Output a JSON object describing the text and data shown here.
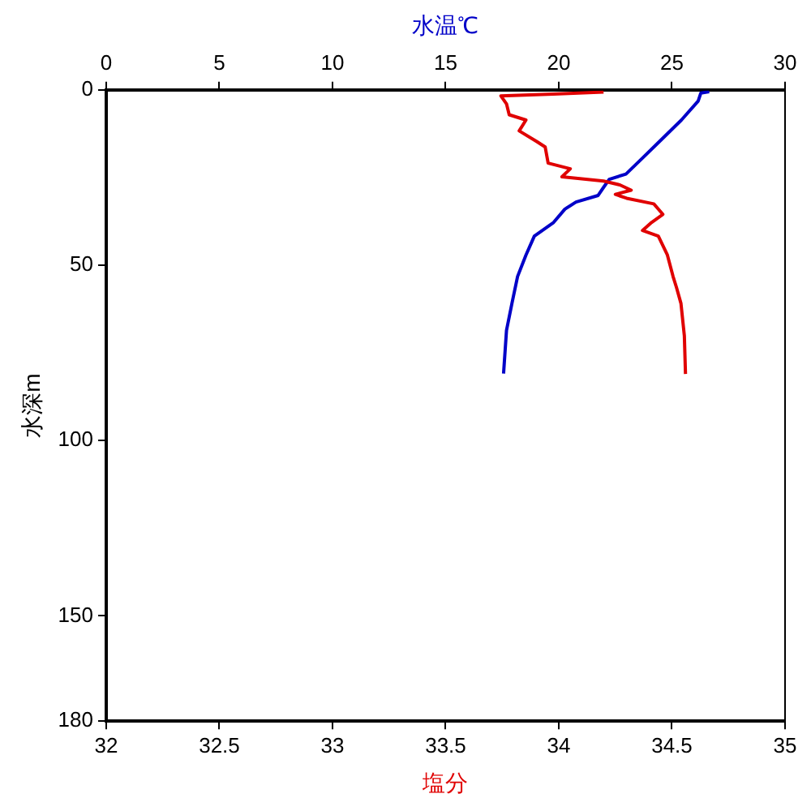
{
  "chart_data": {
    "type": "line",
    "xlabel": "塩分",
    "x2label": "水温℃",
    "ylabel": "水深m",
    "xlim": [
      32,
      35
    ],
    "xticks": [
      32,
      32.5,
      33,
      33.5,
      34,
      34.5,
      35
    ],
    "x2lim": [
      0,
      30
    ],
    "x2ticks": [
      0,
      5,
      10,
      15,
      20,
      25,
      30
    ],
    "ylim": [
      180,
      0
    ],
    "yticks": [
      0,
      50,
      100,
      150,
      180
    ],
    "grid": false,
    "legend": false,
    "marker": "none",
    "series": [
      {
        "color": "#e00000",
        "x": [
          34.198,
          33.977,
          33.744,
          33.769,
          33.781,
          33.855,
          33.825,
          33.904,
          33.94,
          33.953,
          34.051,
          34.014,
          34.076,
          34.198,
          34.27,
          34.32,
          34.25,
          34.3,
          34.42,
          34.46,
          34.41,
          34.37,
          34.44,
          34.48,
          34.505,
          34.52,
          34.54,
          34.555,
          34.56
        ],
        "values": [
          0.6,
          1.2,
          1.7,
          4.0,
          7.1,
          8.6,
          11.7,
          14.8,
          16.3,
          20.9,
          22.5,
          24.8,
          25.2,
          26.0,
          27.1,
          28.6,
          29.8,
          30.9,
          32.5,
          35.5,
          37.8,
          40.1,
          41.7,
          47.1,
          53.2,
          56.3,
          60.9,
          70.1,
          81
        ]
      },
      {
        "color": "#0000c8",
        "axis": "x2",
        "x": [
          26.65,
          26.28,
          26.16,
          25.42,
          24.44,
          23.71,
          22.97,
          22.23,
          21.98,
          21.74,
          20.76,
          20.27,
          19.77,
          18.92,
          18.55,
          18.18,
          17.93,
          17.69,
          17.56
        ],
        "values": [
          0.5,
          0.9,
          3.2,
          8.6,
          14.8,
          19.4,
          24.0,
          25.5,
          27.8,
          30.1,
          32.0,
          34.0,
          37.8,
          41.7,
          47.1,
          53.2,
          60.9,
          68.6,
          80.9
        ]
      }
    ]
  }
}
